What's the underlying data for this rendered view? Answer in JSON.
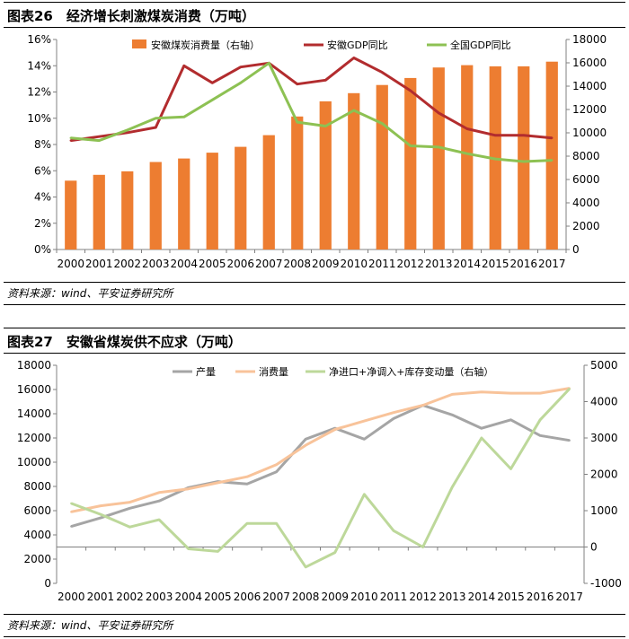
{
  "figures": [
    {
      "title": "图表26　经济增长刺激煤炭消费（万吨）",
      "source": "资料来源：wind、平安证券研究所"
    },
    {
      "title": "图表27　安徽省煤炭供不应求（万吨）",
      "source": "资料来源：wind、平安证券研究所"
    }
  ],
  "chart_data": [
    {
      "type": "bar+line",
      "title": "经济增长刺激煤炭消费（万吨）",
      "categories": [
        "2000",
        "2001",
        "2002",
        "2003",
        "2004",
        "2005",
        "2006",
        "2007",
        "2008",
        "2009",
        "2010",
        "2011",
        "2012",
        "2013",
        "2014",
        "2015",
        "2016",
        "2017"
      ],
      "y_left": {
        "range": [
          0,
          16
        ],
        "ticks": [
          0,
          2,
          4,
          6,
          8,
          10,
          12,
          14,
          16
        ],
        "tick_labels": [
          "0%",
          "2%",
          "4%",
          "6%",
          "8%",
          "10%",
          "12%",
          "14%",
          "16%"
        ]
      },
      "y_right": {
        "range": [
          0,
          18000
        ],
        "ticks": [
          0,
          2000,
          4000,
          6000,
          8000,
          10000,
          12000,
          14000,
          16000,
          18000
        ],
        "tick_labels": [
          "0",
          "2000",
          "4000",
          "6000",
          "8000",
          "10000",
          "12000",
          "14000",
          "16000",
          "18000"
        ]
      },
      "series": [
        {
          "name": "安徽煤炭消费量（右轴）",
          "kind": "bar",
          "axis": "right",
          "color": "#ED7D31",
          "values": [
            5900,
            6400,
            6700,
            7500,
            7800,
            8300,
            8800,
            9800,
            11400,
            12700,
            13400,
            14100,
            14700,
            15600,
            15800,
            15700,
            15700,
            16100
          ]
        },
        {
          "name": "安徽GDP同比",
          "kind": "line",
          "axis": "left",
          "color": "#B22C2E",
          "values": [
            8.3,
            8.6,
            8.9,
            9.3,
            14.0,
            12.7,
            13.9,
            14.2,
            12.6,
            12.9,
            14.6,
            13.5,
            12.1,
            10.4,
            9.2,
            8.7,
            8.7,
            8.5
          ]
        },
        {
          "name": "全国GDP同比",
          "kind": "line",
          "axis": "left",
          "color": "#8DC153",
          "values": [
            8.5,
            8.3,
            9.1,
            10.0,
            10.1,
            11.4,
            12.7,
            14.2,
            9.7,
            9.4,
            10.6,
            9.6,
            7.9,
            7.8,
            7.3,
            6.9,
            6.7,
            6.8
          ]
        }
      ]
    },
    {
      "type": "line",
      "title": "安徽省煤炭供不应求（万吨）",
      "categories": [
        "2000",
        "2001",
        "2002",
        "2003",
        "2004",
        "2005",
        "2006",
        "2007",
        "2008",
        "2009",
        "2010",
        "2011",
        "2012",
        "2013",
        "2014",
        "2015",
        "2016",
        "2017"
      ],
      "y_left": {
        "range": [
          0,
          18000
        ],
        "ticks": [
          0,
          2000,
          4000,
          6000,
          8000,
          10000,
          12000,
          14000,
          16000,
          18000
        ],
        "tick_labels": [
          "0",
          "2000",
          "4000",
          "6000",
          "8000",
          "10000",
          "12000",
          "14000",
          "16000",
          "18000"
        ]
      },
      "y_right": {
        "range": [
          -1000,
          5000
        ],
        "ticks": [
          -1000,
          0,
          1000,
          2000,
          3000,
          4000,
          5000
        ],
        "tick_labels": [
          "-1000",
          "0",
          "1000",
          "2000",
          "3000",
          "4000",
          "5000"
        ]
      },
      "series": [
        {
          "name": "产量",
          "axis": "left",
          "color": "#A5A5A5",
          "values": [
            4700,
            5400,
            6200,
            6800,
            7900,
            8400,
            8200,
            9200,
            11900,
            12800,
            11900,
            13600,
            14700,
            13900,
            12800,
            13500,
            12200,
            11800
          ]
        },
        {
          "name": "消费量",
          "axis": "left",
          "color": "#F8C39A",
          "values": [
            5900,
            6400,
            6700,
            7500,
            7800,
            8300,
            8800,
            9800,
            11400,
            12700,
            13400,
            14100,
            14700,
            15600,
            15800,
            15700,
            15700,
            16100
          ]
        },
        {
          "name": "净进口+净调入+库存变动量（右轴）",
          "axis": "right",
          "color": "#BDD89A",
          "values": [
            1200,
            900,
            550,
            750,
            -50,
            -120,
            650,
            650,
            -550,
            -150,
            1450,
            450,
            0,
            1650,
            3000,
            2150,
            3500,
            4350
          ]
        }
      ]
    }
  ]
}
